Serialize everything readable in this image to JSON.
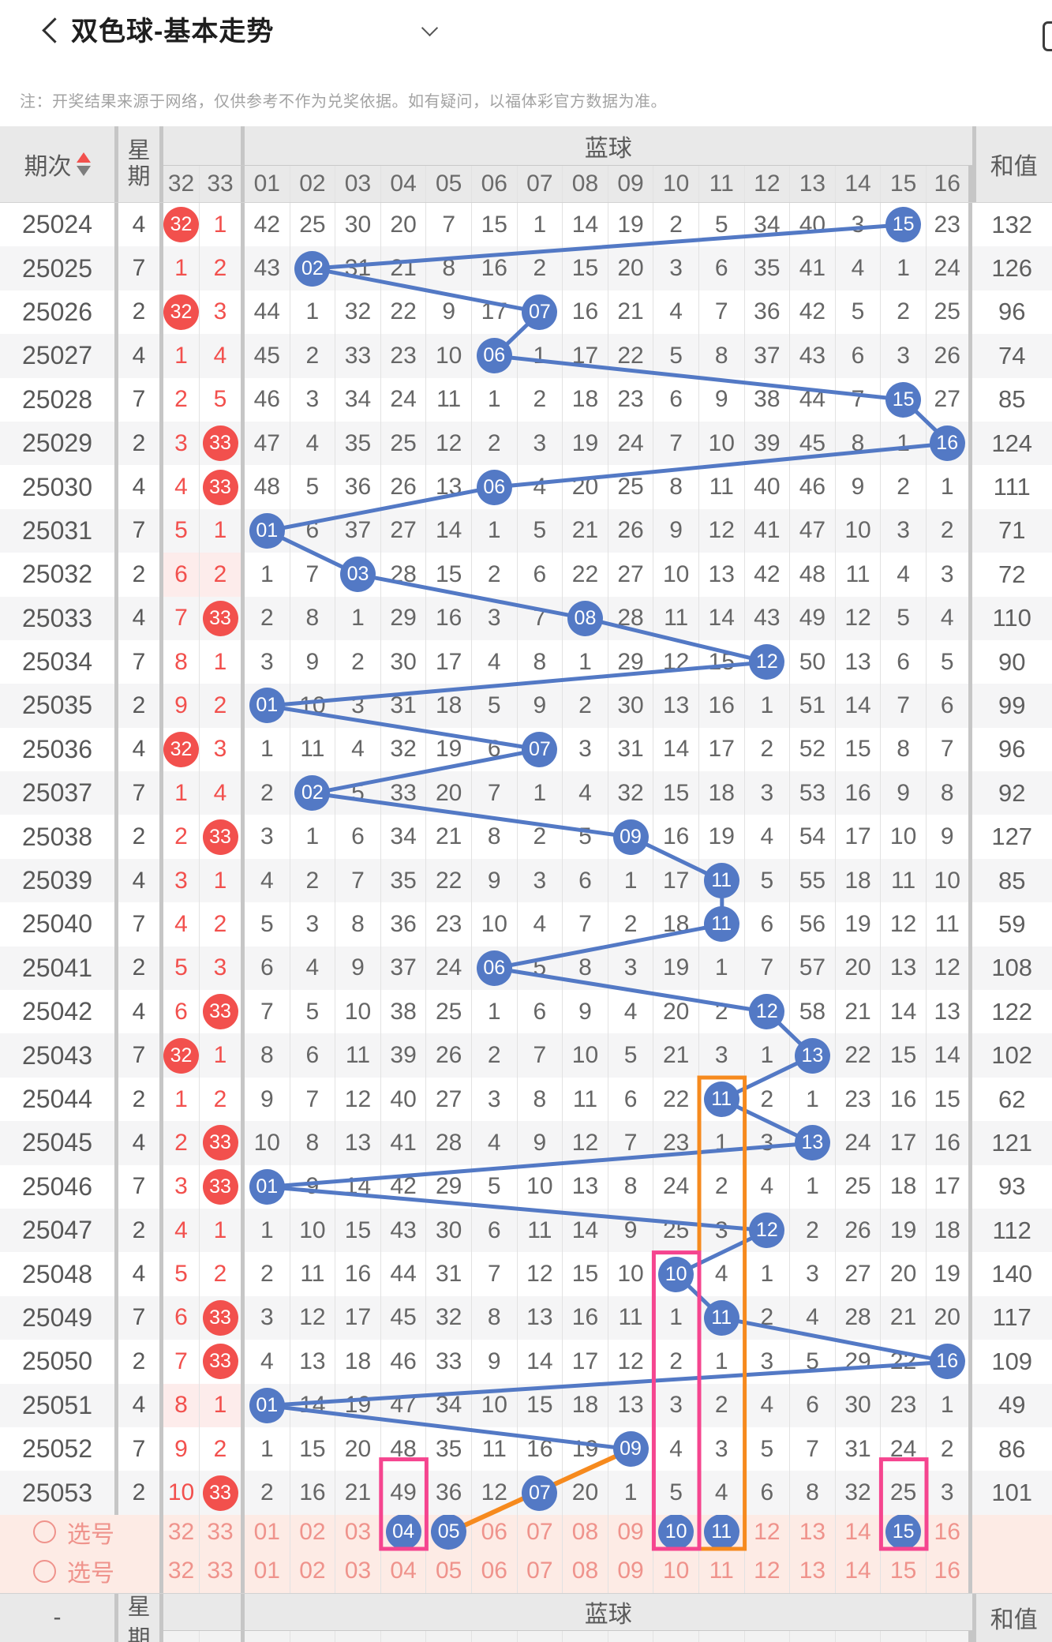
{
  "app": {
    "title": "双色球-基本走势",
    "note": "注：开奖结果来源于网络，仅供参考不作为兑奖依据。如有疑问，以福体彩官方数据为准。"
  },
  "colors": {
    "red": "#f2504d",
    "blue": "#5379c5",
    "orange": "#f68a1e",
    "pink_box": "#f5458f",
    "select_bg": "#fdebe5",
    "select_text": "#ef938c"
  },
  "table": {
    "header": {
      "period": "期次",
      "week": "星期",
      "blue_group": "蓝球",
      "sum": "和值",
      "red_cols": [
        "32",
        "33"
      ],
      "blue_cols": [
        "01",
        "02",
        "03",
        "04",
        "05",
        "06",
        "07",
        "08",
        "09",
        "10",
        "11",
        "12",
        "13",
        "14",
        "15",
        "16"
      ]
    },
    "rows": [
      {
        "period": "25024",
        "week": "4",
        "red": [
          {
            "v": "32",
            "hit": true
          },
          {
            "v": "1",
            "hit": false
          }
        ],
        "cells": [
          42,
          25,
          30,
          20,
          7,
          15,
          1,
          14,
          19,
          2,
          5,
          34,
          40,
          3,
          "15",
          23
        ],
        "ball": 15,
        "sum": 132,
        "red_hl": false
      },
      {
        "period": "25025",
        "week": "7",
        "red": [
          {
            "v": "1",
            "hit": false
          },
          {
            "v": "2",
            "hit": false
          }
        ],
        "cells": [
          43,
          "02",
          31,
          21,
          8,
          16,
          2,
          15,
          20,
          3,
          6,
          35,
          41,
          4,
          1,
          24
        ],
        "ball": 2,
        "sum": 126,
        "red_hl": false
      },
      {
        "period": "25026",
        "week": "2",
        "red": [
          {
            "v": "32",
            "hit": true
          },
          {
            "v": "3",
            "hit": false
          }
        ],
        "cells": [
          44,
          1,
          32,
          22,
          9,
          17,
          "07",
          16,
          21,
          4,
          7,
          36,
          42,
          5,
          2,
          25
        ],
        "ball": 7,
        "sum": 96,
        "red_hl": false
      },
      {
        "period": "25027",
        "week": "4",
        "red": [
          {
            "v": "1",
            "hit": false
          },
          {
            "v": "4",
            "hit": false
          }
        ],
        "cells": [
          45,
          2,
          33,
          23,
          10,
          "06",
          1,
          17,
          22,
          5,
          8,
          37,
          43,
          6,
          3,
          26
        ],
        "ball": 6,
        "sum": 74,
        "red_hl": false
      },
      {
        "period": "25028",
        "week": "7",
        "red": [
          {
            "v": "2",
            "hit": false
          },
          {
            "v": "5",
            "hit": false
          }
        ],
        "cells": [
          46,
          3,
          34,
          24,
          11,
          1,
          2,
          18,
          23,
          6,
          9,
          38,
          44,
          7,
          "15",
          27
        ],
        "ball": 15,
        "sum": 85,
        "red_hl": false
      },
      {
        "period": "25029",
        "week": "2",
        "red": [
          {
            "v": "3",
            "hit": false
          },
          {
            "v": "33",
            "hit": true
          }
        ],
        "cells": [
          47,
          4,
          35,
          25,
          12,
          2,
          3,
          19,
          24,
          7,
          10,
          39,
          45,
          8,
          1,
          "16"
        ],
        "ball": 16,
        "sum": 124,
        "red_hl": false
      },
      {
        "period": "25030",
        "week": "4",
        "red": [
          {
            "v": "4",
            "hit": false
          },
          {
            "v": "33",
            "hit": true
          }
        ],
        "cells": [
          48,
          5,
          36,
          26,
          13,
          "06",
          4,
          20,
          25,
          8,
          11,
          40,
          46,
          9,
          2,
          1
        ],
        "ball": 6,
        "sum": 111,
        "red_hl": false
      },
      {
        "period": "25031",
        "week": "7",
        "red": [
          {
            "v": "5",
            "hit": false
          },
          {
            "v": "1",
            "hit": false
          }
        ],
        "cells": [
          "01",
          6,
          37,
          27,
          14,
          1,
          5,
          21,
          26,
          9,
          12,
          41,
          47,
          10,
          3,
          2
        ],
        "ball": 1,
        "sum": 71,
        "red_hl": false
      },
      {
        "period": "25032",
        "week": "2",
        "red": [
          {
            "v": "6",
            "hit": false
          },
          {
            "v": "2",
            "hit": false
          }
        ],
        "cells": [
          1,
          7,
          "03",
          28,
          15,
          2,
          6,
          22,
          27,
          10,
          13,
          42,
          48,
          11,
          4,
          3
        ],
        "ball": 3,
        "sum": 72,
        "red_hl": true
      },
      {
        "period": "25033",
        "week": "4",
        "red": [
          {
            "v": "7",
            "hit": false
          },
          {
            "v": "33",
            "hit": true
          }
        ],
        "cells": [
          2,
          8,
          1,
          29,
          16,
          3,
          7,
          "08",
          28,
          11,
          14,
          43,
          49,
          12,
          5,
          4
        ],
        "ball": 8,
        "sum": 110,
        "red_hl": false
      },
      {
        "period": "25034",
        "week": "7",
        "red": [
          {
            "v": "8",
            "hit": false
          },
          {
            "v": "1",
            "hit": false
          }
        ],
        "cells": [
          3,
          9,
          2,
          30,
          17,
          4,
          8,
          1,
          29,
          12,
          15,
          "12",
          50,
          13,
          6,
          5
        ],
        "ball": 12,
        "sum": 90,
        "red_hl": false
      },
      {
        "period": "25035",
        "week": "2",
        "red": [
          {
            "v": "9",
            "hit": false
          },
          {
            "v": "2",
            "hit": false
          }
        ],
        "cells": [
          "01",
          10,
          3,
          31,
          18,
          5,
          9,
          2,
          30,
          13,
          16,
          1,
          51,
          14,
          7,
          6
        ],
        "ball": 1,
        "sum": 99,
        "red_hl": false
      },
      {
        "period": "25036",
        "week": "4",
        "red": [
          {
            "v": "32",
            "hit": true
          },
          {
            "v": "3",
            "hit": false
          }
        ],
        "cells": [
          1,
          11,
          4,
          32,
          19,
          6,
          "07",
          3,
          31,
          14,
          17,
          2,
          52,
          15,
          8,
          7
        ],
        "ball": 7,
        "sum": 96,
        "red_hl": false
      },
      {
        "period": "25037",
        "week": "7",
        "red": [
          {
            "v": "1",
            "hit": false
          },
          {
            "v": "4",
            "hit": false
          }
        ],
        "cells": [
          2,
          "02",
          5,
          33,
          20,
          7,
          1,
          4,
          32,
          15,
          18,
          3,
          53,
          16,
          9,
          8
        ],
        "ball": 2,
        "sum": 92,
        "red_hl": false
      },
      {
        "period": "25038",
        "week": "2",
        "red": [
          {
            "v": "2",
            "hit": false
          },
          {
            "v": "33",
            "hit": true
          }
        ],
        "cells": [
          3,
          1,
          6,
          34,
          21,
          8,
          2,
          5,
          "09",
          16,
          19,
          4,
          54,
          17,
          10,
          9
        ],
        "ball": 9,
        "sum": 127,
        "red_hl": false
      },
      {
        "period": "25039",
        "week": "4",
        "red": [
          {
            "v": "3",
            "hit": false
          },
          {
            "v": "1",
            "hit": false
          }
        ],
        "cells": [
          4,
          2,
          7,
          35,
          22,
          9,
          3,
          6,
          1,
          17,
          "11",
          5,
          55,
          18,
          11,
          10
        ],
        "ball": 11,
        "sum": 85,
        "red_hl": false
      },
      {
        "period": "25040",
        "week": "7",
        "red": [
          {
            "v": "4",
            "hit": false
          },
          {
            "v": "2",
            "hit": false
          }
        ],
        "cells": [
          5,
          3,
          8,
          36,
          23,
          10,
          4,
          7,
          2,
          18,
          "11",
          6,
          56,
          19,
          12,
          11
        ],
        "ball": 11,
        "sum": 59,
        "red_hl": false
      },
      {
        "period": "25041",
        "week": "2",
        "red": [
          {
            "v": "5",
            "hit": false
          },
          {
            "v": "3",
            "hit": false
          }
        ],
        "cells": [
          6,
          4,
          9,
          37,
          24,
          "06",
          5,
          8,
          3,
          19,
          1,
          7,
          57,
          20,
          13,
          12
        ],
        "ball": 6,
        "sum": 108,
        "red_hl": false
      },
      {
        "period": "25042",
        "week": "4",
        "red": [
          {
            "v": "6",
            "hit": false
          },
          {
            "v": "33",
            "hit": true
          }
        ],
        "cells": [
          7,
          5,
          10,
          38,
          25,
          1,
          6,
          9,
          4,
          20,
          2,
          "12",
          58,
          21,
          14,
          13
        ],
        "ball": 12,
        "sum": 122,
        "red_hl": false
      },
      {
        "period": "25043",
        "week": "7",
        "red": [
          {
            "v": "32",
            "hit": true
          },
          {
            "v": "1",
            "hit": false
          }
        ],
        "cells": [
          8,
          6,
          11,
          39,
          26,
          2,
          7,
          10,
          5,
          21,
          3,
          1,
          "13",
          22,
          15,
          14
        ],
        "ball": 13,
        "sum": 102,
        "red_hl": false
      },
      {
        "period": "25044",
        "week": "2",
        "red": [
          {
            "v": "1",
            "hit": false
          },
          {
            "v": "2",
            "hit": false
          }
        ],
        "cells": [
          9,
          7,
          12,
          40,
          27,
          3,
          8,
          11,
          6,
          22,
          "11",
          2,
          1,
          23,
          16,
          15
        ],
        "ball": 11,
        "sum": 62,
        "red_hl": false
      },
      {
        "period": "25045",
        "week": "4",
        "red": [
          {
            "v": "2",
            "hit": false
          },
          {
            "v": "33",
            "hit": true
          }
        ],
        "cells": [
          10,
          8,
          13,
          41,
          28,
          4,
          9,
          12,
          7,
          23,
          1,
          3,
          "13",
          24,
          17,
          16
        ],
        "ball": 13,
        "sum": 121,
        "red_hl": false
      },
      {
        "period": "25046",
        "week": "7",
        "red": [
          {
            "v": "3",
            "hit": false
          },
          {
            "v": "33",
            "hit": true
          }
        ],
        "cells": [
          "01",
          9,
          14,
          42,
          29,
          5,
          10,
          13,
          8,
          24,
          2,
          4,
          1,
          25,
          18,
          17
        ],
        "ball": 1,
        "sum": 93,
        "red_hl": false
      },
      {
        "period": "25047",
        "week": "2",
        "red": [
          {
            "v": "4",
            "hit": false
          },
          {
            "v": "1",
            "hit": false
          }
        ],
        "cells": [
          1,
          10,
          15,
          43,
          30,
          6,
          11,
          14,
          9,
          25,
          3,
          "12",
          2,
          26,
          19,
          18
        ],
        "ball": 12,
        "sum": 112,
        "red_hl": false
      },
      {
        "period": "25048",
        "week": "4",
        "red": [
          {
            "v": "5",
            "hit": false
          },
          {
            "v": "2",
            "hit": false
          }
        ],
        "cells": [
          2,
          11,
          16,
          44,
          31,
          7,
          12,
          15,
          10,
          "10",
          4,
          1,
          3,
          27,
          20,
          19
        ],
        "ball": 10,
        "sum": 140,
        "red_hl": false
      },
      {
        "period": "25049",
        "week": "7",
        "red": [
          {
            "v": "6",
            "hit": false
          },
          {
            "v": "33",
            "hit": true
          }
        ],
        "cells": [
          3,
          12,
          17,
          45,
          32,
          8,
          13,
          16,
          11,
          1,
          "11",
          2,
          4,
          28,
          21,
          20
        ],
        "ball": 11,
        "sum": 117,
        "red_hl": false
      },
      {
        "period": "25050",
        "week": "2",
        "red": [
          {
            "v": "7",
            "hit": false
          },
          {
            "v": "33",
            "hit": true
          }
        ],
        "cells": [
          4,
          13,
          18,
          46,
          33,
          9,
          14,
          17,
          12,
          2,
          1,
          3,
          5,
          29,
          22,
          "16"
        ],
        "ball": 16,
        "sum": 109,
        "red_hl": false
      },
      {
        "period": "25051",
        "week": "4",
        "red": [
          {
            "v": "8",
            "hit": false
          },
          {
            "v": "1",
            "hit": false
          }
        ],
        "cells": [
          "01",
          14,
          19,
          47,
          34,
          10,
          15,
          18,
          13,
          3,
          2,
          4,
          6,
          30,
          23,
          1
        ],
        "ball": 1,
        "sum": 49,
        "red_hl": true
      },
      {
        "period": "25052",
        "week": "7",
        "red": [
          {
            "v": "9",
            "hit": false
          },
          {
            "v": "2",
            "hit": false
          }
        ],
        "cells": [
          1,
          15,
          20,
          48,
          35,
          11,
          16,
          19,
          "09",
          4,
          3,
          5,
          7,
          31,
          24,
          2
        ],
        "ball": 9,
        "sum": 86,
        "red_hl": false
      },
      {
        "period": "25053",
        "week": "2",
        "red": [
          {
            "v": "10",
            "hit": false
          },
          {
            "v": "33",
            "hit": true
          }
        ],
        "cells": [
          2,
          16,
          21,
          49,
          36,
          12,
          "07",
          20,
          1,
          5,
          4,
          6,
          8,
          32,
          25,
          3
        ],
        "ball": 7,
        "sum": 101,
        "red_hl": false
      }
    ],
    "select_rows": [
      {
        "label": "选号",
        "numbers": [
          "32",
          "33",
          "01",
          "02",
          "03",
          "04",
          "05",
          "06",
          "07",
          "08",
          "09",
          "10",
          "11",
          "12",
          "13",
          "14",
          "15",
          "16"
        ],
        "selected": [
          "04",
          "05",
          "10",
          "11",
          "15"
        ]
      },
      {
        "label": "选号",
        "numbers": [
          "32",
          "33",
          "01",
          "02",
          "03",
          "04",
          "05",
          "06",
          "07",
          "08",
          "09",
          "10",
          "11",
          "12",
          "13",
          "14",
          "15",
          "16"
        ],
        "selected": []
      }
    ],
    "footer": {
      "period": "-",
      "week": "星期",
      "blue_group": "蓝球",
      "sum": "和值"
    }
  },
  "annotations": {
    "trend_line_last_connected_period": "25052",
    "orange_line": {
      "from_period": "25052",
      "to_select_number": "05"
    },
    "highlight_boxes": [
      {
        "color": "orange",
        "column": "11",
        "from_period": "25044",
        "to": "select-row-1"
      },
      {
        "color": "pink",
        "column": "10",
        "from_period": "25048",
        "to": "select-row-1"
      },
      {
        "color": "pink",
        "column": "04",
        "from_period": "25053",
        "to": "select-row-1"
      },
      {
        "color": "pink",
        "column": "15",
        "from_period": "25053",
        "to": "select-row-1"
      }
    ]
  }
}
